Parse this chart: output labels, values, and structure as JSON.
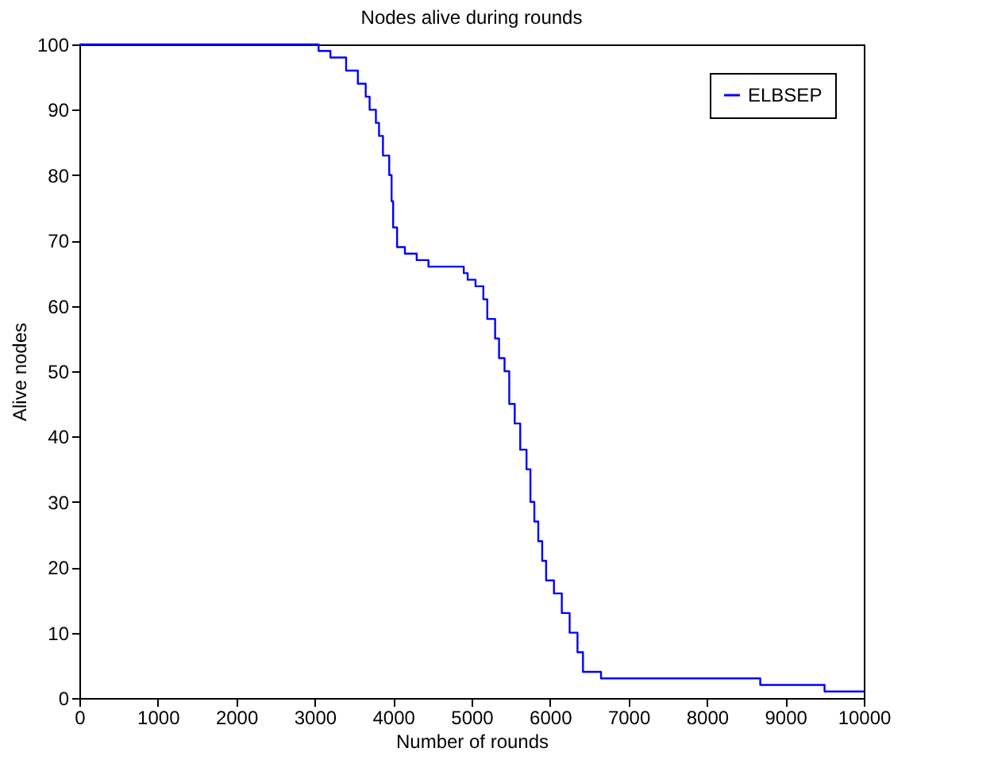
{
  "chart_data": {
    "type": "step",
    "title": "Nodes alive during rounds",
    "xlabel": "Number of rounds",
    "ylabel": "Alive nodes",
    "xlim": [
      0,
      10000
    ],
    "xticks": [
      0,
      1000,
      2000,
      3000,
      4000,
      5000,
      6000,
      7000,
      8000,
      9000,
      10000
    ],
    "ylim": [
      0,
      100
    ],
    "yticks": [
      0,
      10,
      20,
      30,
      40,
      50,
      60,
      70,
      80,
      90,
      100
    ],
    "grid": false,
    "legend": "top right",
    "series": [
      {
        "name": "ELBSEP",
        "color": "#0000ff",
        "x": [
          0,
          3000,
          3050,
          3200,
          3400,
          3550,
          3650,
          3700,
          3780,
          3820,
          3870,
          3950,
          3980,
          4000,
          4050,
          4150,
          4300,
          4450,
          4900,
          4950,
          5050,
          5150,
          5200,
          5300,
          5350,
          5420,
          5480,
          5550,
          5620,
          5700,
          5750,
          5800,
          5850,
          5900,
          5950,
          6050,
          6150,
          6250,
          6350,
          6420,
          6650,
          8680,
          9500,
          10000
        ],
        "values": [
          100,
          100,
          99,
          98,
          96,
          94,
          92,
          90,
          88,
          86,
          83,
          80,
          76,
          72,
          69,
          68,
          67,
          66,
          65,
          64,
          63,
          61,
          58,
          55,
          52,
          50,
          45,
          42,
          38,
          35,
          30,
          27,
          24,
          21,
          18,
          16,
          13,
          10,
          7,
          4,
          3,
          2,
          1,
          1
        ]
      }
    ]
  }
}
